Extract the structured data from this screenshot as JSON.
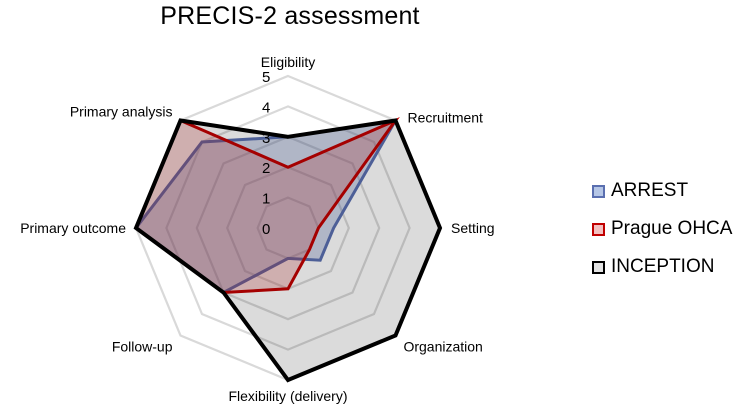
{
  "chart_data": {
    "type": "radar",
    "title": "PRECIS-2 assessment",
    "axes": [
      "Eligibility",
      "Recruitment",
      "Setting",
      "Organization",
      "Flexibility (delivery)",
      "Follow-up",
      "Primary outcome",
      "Primary analysis"
    ],
    "range": [
      0,
      5
    ],
    "ticks": [
      "0",
      "1",
      "2",
      "3",
      "4",
      "5"
    ],
    "grid": true,
    "legend_position": "right",
    "series": [
      {
        "name": "ARREST",
        "values": [
          3,
          5,
          1.5,
          1.5,
          1,
          3,
          5,
          4
        ],
        "stroke": "#5a6fb0",
        "fill": "rgba(90,111,176,0.30)",
        "swatch_fill": "#b5c6e6"
      },
      {
        "name": "Prague OHCA",
        "values": [
          2,
          5,
          1,
          1,
          2,
          3,
          5,
          5
        ],
        "stroke": "#c00000",
        "fill": "rgba(200,40,40,0.24)",
        "swatch_fill": "#f3c0c0"
      },
      {
        "name": "INCEPTION",
        "values": [
          3,
          5,
          5,
          5,
          5,
          3,
          5,
          5
        ],
        "stroke": "#000000",
        "fill": "rgba(0,0,0,0.14)",
        "swatch_fill": "#e3e3e3"
      }
    ]
  }
}
